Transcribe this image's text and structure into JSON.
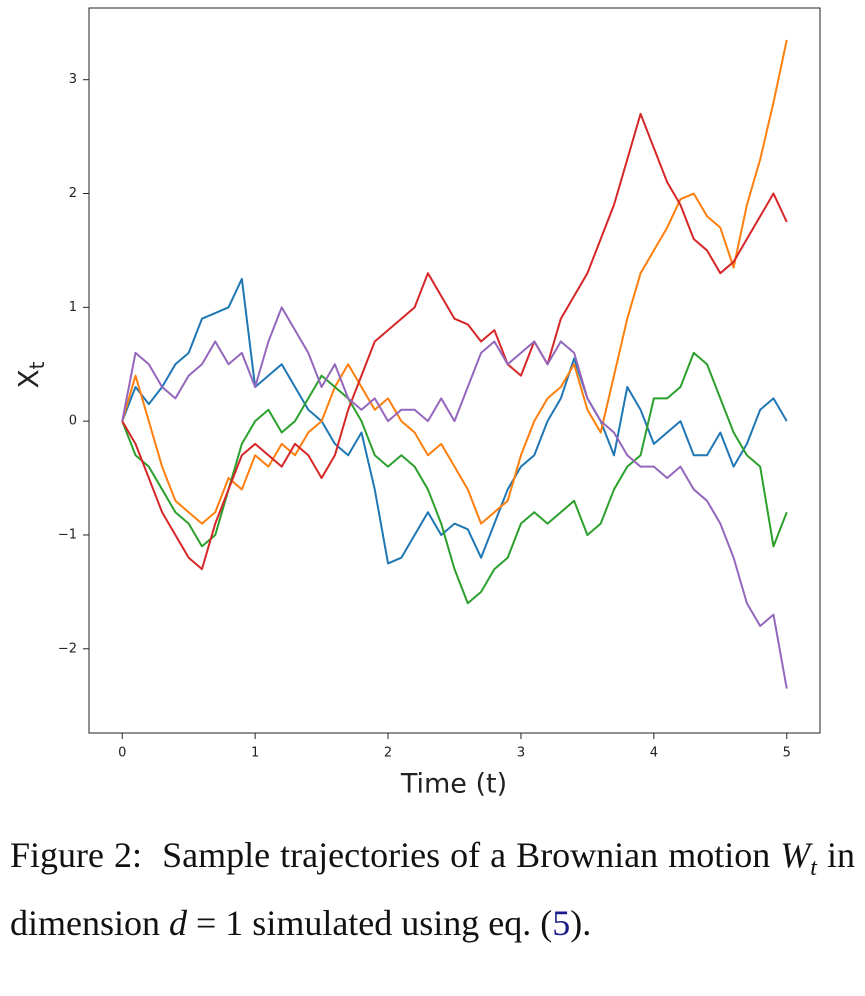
{
  "chart_data": {
    "type": "line",
    "xlabel": "Time (t)",
    "ylabel": {
      "main": "X",
      "sub": "t"
    },
    "x": [
      0,
      0.1,
      0.2,
      0.3,
      0.4,
      0.5,
      0.6,
      0.7,
      0.8,
      0.9,
      1,
      1.1,
      1.2,
      1.3,
      1.4,
      1.5,
      1.6,
      1.7,
      1.8,
      1.9,
      2,
      2.1,
      2.2,
      2.3,
      2.4,
      2.5,
      2.6,
      2.7,
      2.8,
      2.9,
      3,
      3.1,
      3.2,
      3.3,
      3.4,
      3.5,
      3.6,
      3.7,
      3.8,
      3.9,
      4,
      4.1,
      4.2,
      4.3,
      4.4,
      4.5,
      4.6,
      4.7,
      4.8,
      4.9,
      5
    ],
    "series": [
      {
        "color": "#1f77b4",
        "values": [
          0,
          0.3,
          0.15,
          0.3,
          0.5,
          0.6,
          0.9,
          0.95,
          1.0,
          1.25,
          0.3,
          0.4,
          0.5,
          0.3,
          0.1,
          0.0,
          -0.2,
          -0.3,
          -0.1,
          -0.6,
          -1.25,
          -1.2,
          -1.0,
          -0.8,
          -1.0,
          -0.9,
          -0.95,
          -1.2,
          -0.9,
          -0.6,
          -0.4,
          -0.3,
          0.0,
          0.2,
          0.55,
          0.2,
          0.0,
          -0.3,
          0.3,
          0.1,
          -0.2,
          -0.1,
          0.0,
          -0.3,
          -0.3,
          -0.1,
          -0.4,
          -0.2,
          0.1,
          0.2,
          0.0
        ]
      },
      {
        "color": "#ff7f0e",
        "values": [
          0,
          0.4,
          0.0,
          -0.4,
          -0.7,
          -0.8,
          -0.9,
          -0.8,
          -0.5,
          -0.6,
          -0.3,
          -0.4,
          -0.2,
          -0.3,
          -0.1,
          0.0,
          0.3,
          0.5,
          0.3,
          0.1,
          0.2,
          0.0,
          -0.1,
          -0.3,
          -0.2,
          -0.4,
          -0.6,
          -0.9,
          -0.8,
          -0.7,
          -0.3,
          0.0,
          0.2,
          0.3,
          0.5,
          0.1,
          -0.1,
          0.4,
          0.9,
          1.3,
          1.5,
          1.7,
          1.95,
          2.0,
          1.8,
          1.7,
          1.35,
          1.9,
          2.3,
          2.8,
          3.35
        ]
      },
      {
        "color": "#2ca02c",
        "values": [
          0,
          -0.3,
          -0.4,
          -0.6,
          -0.8,
          -0.9,
          -1.1,
          -1.0,
          -0.6,
          -0.2,
          0.0,
          0.1,
          -0.1,
          0.0,
          0.2,
          0.4,
          0.3,
          0.2,
          0.0,
          -0.3,
          -0.4,
          -0.3,
          -0.4,
          -0.6,
          -0.9,
          -1.3,
          -1.6,
          -1.5,
          -1.3,
          -1.2,
          -0.9,
          -0.8,
          -0.9,
          -0.8,
          -0.7,
          -1.0,
          -0.9,
          -0.6,
          -0.4,
          -0.3,
          0.2,
          0.2,
          0.3,
          0.6,
          0.5,
          0.2,
          -0.1,
          -0.3,
          -0.4,
          -1.1,
          -0.8
        ]
      },
      {
        "color": "#d62728",
        "values": [
          0,
          -0.2,
          -0.5,
          -0.8,
          -1.0,
          -1.2,
          -1.3,
          -0.9,
          -0.6,
          -0.3,
          -0.2,
          -0.3,
          -0.4,
          -0.2,
          -0.3,
          -0.5,
          -0.3,
          0.1,
          0.4,
          0.7,
          0.8,
          0.9,
          1.0,
          1.3,
          1.1,
          0.9,
          0.85,
          0.7,
          0.8,
          0.5,
          0.4,
          0.7,
          0.5,
          0.9,
          1.1,
          1.3,
          1.6,
          1.9,
          2.3,
          2.7,
          2.4,
          2.1,
          1.9,
          1.6,
          1.5,
          1.3,
          1.4,
          1.6,
          1.8,
          2.0,
          1.75
        ]
      },
      {
        "color": "#9467bd",
        "values": [
          0,
          0.6,
          0.5,
          0.3,
          0.2,
          0.4,
          0.5,
          0.7,
          0.5,
          0.6,
          0.3,
          0.7,
          1.0,
          0.8,
          0.6,
          0.3,
          0.5,
          0.2,
          0.1,
          0.2,
          0.0,
          0.1,
          0.1,
          0.0,
          0.2,
          0.0,
          0.3,
          0.6,
          0.7,
          0.5,
          0.6,
          0.7,
          0.5,
          0.7,
          0.6,
          0.2,
          0.0,
          -0.1,
          -0.3,
          -0.4,
          -0.4,
          -0.5,
          -0.4,
          -0.6,
          -0.7,
          -0.9,
          -1.2,
          -1.6,
          -1.8,
          -1.7,
          -2.35
        ]
      }
    ],
    "xlim": [
      -0.25,
      5.25
    ],
    "xticks": [
      0,
      1,
      2,
      3,
      4,
      5
    ],
    "ylim": [
      -2.74,
      3.63
    ],
    "yticks": [
      {
        "value": -2,
        "label": "−2"
      },
      {
        "value": -1,
        "label": "−1"
      },
      0,
      1,
      2,
      3
    ],
    "grid": false
  },
  "caption": [
    "Figure 2:",
    "Sample trajectories of a Brownian motion",
    "W",
    "t",
    "in dimension",
    "d",
    "= 1 simulated using eq. (",
    "5",
    ")."
  ]
}
